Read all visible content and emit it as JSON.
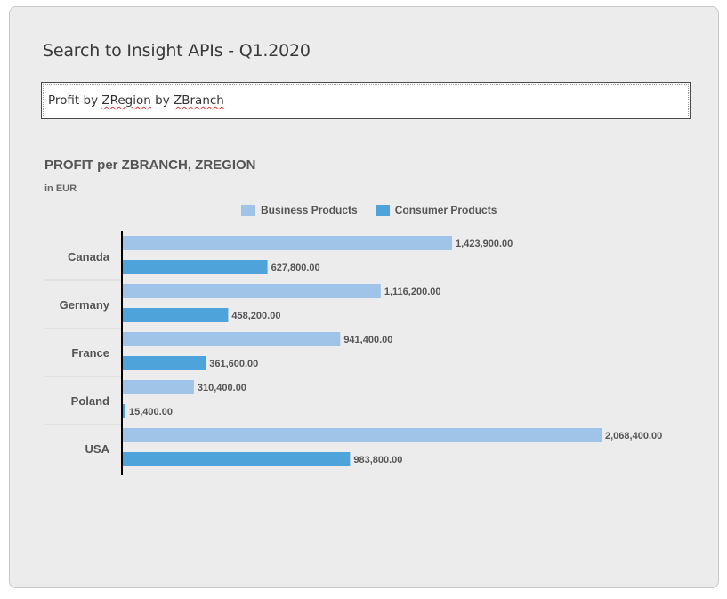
{
  "panel": {
    "title": "Search to Insight APIs - Q1.2020"
  },
  "query": {
    "prefix": "Profit by ",
    "term1": "ZRegion",
    "middle": " by ",
    "term2": "ZBranch"
  },
  "colors": {
    "business": "#a0c4e8",
    "consumer": "#4fa3db",
    "axis": "#000000"
  },
  "chart_data": {
    "type": "bar",
    "orientation": "horizontal",
    "title": "PROFIT per ZBRANCH, ZREGION",
    "subtitle": "in EUR",
    "categories": [
      "Canada",
      "Germany",
      "France",
      "Poland",
      "USA"
    ],
    "series": [
      {
        "name": "Business Products",
        "values": [
          1423900,
          1116200,
          941400,
          310400,
          2068400
        ],
        "labels": [
          "1,423,900.00",
          "1,116,200.00",
          "941,400.00",
          "310,400.00",
          "2,068,400.00"
        ]
      },
      {
        "name": "Consumer Products",
        "values": [
          627800,
          458200,
          361600,
          15400,
          983800
        ],
        "labels": [
          "627,800.00",
          "458,200.00",
          "361,600.00",
          "15,400.00",
          "983,800.00"
        ]
      }
    ],
    "legend_position": "top",
    "grid": false
  }
}
